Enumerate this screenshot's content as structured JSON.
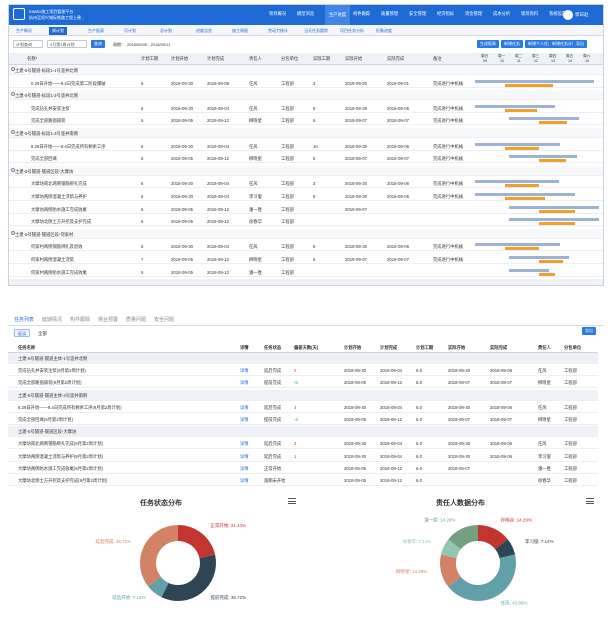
{
  "app": {
    "title_line1": "BIM5D施工项目管理平台",
    "title_line2": "杭州至绍兴城际铁路工程土建...",
    "nav": [
      "项目概况",
      "模型浏览",
      "生产进度",
      "构件跟踪",
      "质量管理",
      "安全管理",
      "经济指标",
      "资金管理",
      "成本分析",
      "现场资料",
      "系统设置"
    ],
    "active_nav": "生产进度",
    "user": "郭日赵"
  },
  "subtabs": [
    "生产概况",
    "周计划",
    "生产报表",
    "月计划",
    "总计划",
    "进度总览",
    "施工周报",
    "劳动力统计",
    "当天任务跟踪",
    "项目任务分析",
    "形象进度"
  ],
  "active_subtab": "周计划",
  "filter": {
    "plan_select": "计划查询",
    "week_select": "9月第2周计划",
    "query_button": "查询",
    "period_label": "周期：",
    "period_value": "2018/09/09 - 2018/09/11"
  },
  "actions": [
    "生成报表",
    "新增任务",
    "新增个人任务",
    "新增任务计划",
    "导出"
  ],
  "grid": {
    "columns": [
      "名称*",
      "计划工期",
      "计划开始",
      "计划完成",
      "责任人",
      "分包单位",
      "实际工期",
      "实际开始",
      "实际完成",
      "备注"
    ],
    "day_headers": [
      "周日",
      "周一",
      "周二",
      "周三",
      "周四",
      "周五",
      "周六"
    ],
    "day_dates": [
      "09",
      "10",
      "11",
      "12",
      "13",
      "14",
      "15"
    ],
    "rows": [
      {
        "type": "grp",
        "name": "土建-5号隧道-标段1-1号竖井北侧",
        "cols": [
          "",
          "",
          "",
          "",
          "",
          "",
          "",
          "",
          "",
          ""
        ]
      },
      {
        "type": "row",
        "name": "0.29日开始——9.4日完成第二阶段爆破",
        "cols": [
          "6",
          "2018-09-30",
          "2018-09-09",
          "任风",
          "工程部",
          "3",
          "2018-09-30",
          "2018-09-01",
          "完成进行中机械",
          ""
        ]
      },
      {
        "type": "grp",
        "name": "土建-5号隧道-标段1-2号竖井北侧",
        "cols": [
          "",
          "",
          "",
          "",
          "",
          "",
          "",
          "",
          "",
          ""
        ]
      },
      {
        "type": "row",
        "name": "完成钻孔并安装注浆",
        "cols": [
          "6",
          "2018-09-30",
          "2018-09-04",
          "任风",
          "工程部",
          "9",
          "2018-09-29",
          "2018-09-06",
          "完成进行中机械",
          ""
        ]
      },
      {
        "type": "row",
        "name": "完成全部路面铺装",
        "cols": [
          "6",
          "2018-09-05",
          "2018-09-12",
          "柳晓星",
          "工程部",
          "6",
          "2018-09-07",
          "2018-09-07",
          "完成进行中机械",
          ""
        ]
      },
      {
        "type": "grp",
        "name": "土建-5号隧道-标段1-3号竖井南侧",
        "cols": [
          "",
          "",
          "",
          "",
          "",
          "",
          "",
          "",
          "",
          ""
        ]
      },
      {
        "type": "row",
        "name": "8.29日开始——9.4日完成所有剩余工序",
        "cols": [
          "6",
          "2018-09-30",
          "2018-09-04",
          "任风",
          "工程部",
          "10",
          "2018-09-30",
          "2018-09-06",
          "完成进行中机械",
          ""
        ]
      },
      {
        "type": "row",
        "name": "完成全部回填",
        "cols": [
          "6",
          "2018-09-05",
          "2018-09-12",
          "柳晓星",
          "工程部",
          "5",
          "2018-09-07",
          "2018-09-07",
          "完成进行中机械",
          ""
        ]
      },
      {
        "type": "grp",
        "name": "土建-5号隧道-隧道区段-大摩坊",
        "cols": [
          "",
          "",
          "",
          "",
          "",
          "",
          "",
          "",
          "",
          ""
        ]
      },
      {
        "type": "row",
        "name": "大摩坊南北两侧钢筋绑扎完成",
        "cols": [
          "6",
          "2018-09-30",
          "2018-09-04",
          "任风",
          "工程部",
          "3",
          "2018-09-30",
          "2018-09-06",
          "完成进行中机械",
          ""
        ]
      },
      {
        "type": "row",
        "name": "大摩坊两侧混凝土浇筑与养护",
        "cols": [
          "6",
          "2018-09-30",
          "2018-09-04",
          "李习俊",
          "工程部",
          "9",
          "2018-09-30",
          "2018-09-06",
          "完成进行中机械",
          ""
        ]
      },
      {
        "type": "row",
        "name": "大摩坊两侧防水施工完成收尾",
        "cols": [
          "6",
          "2018-09-05",
          "2018-09-12",
          "潘一胜",
          "工程部",
          "",
          "2018-09-07",
          "",
          "",
          ""
        ]
      },
      {
        "type": "row",
        "name": "大摩坊北侧土方开挖及支护完成",
        "cols": [
          "6",
          "2018-09-05",
          "2018-09-12",
          "徐春华",
          "工程部",
          "",
          "",
          "",
          "",
          ""
        ]
      },
      {
        "type": "grp",
        "name": "土建-5号隧道-隧道区段-何家村",
        "cols": [
          "",
          "",
          "",
          "",
          "",
          "",
          "",
          "",
          "",
          ""
        ]
      },
      {
        "type": "row",
        "name": "何家村两侧钢筋绑扎及验收",
        "cols": [
          "6",
          "2018-09-30",
          "2018-09-04",
          "任风",
          "工程部",
          "9",
          "2018-09-30",
          "2018-09-06",
          "完成进行中机械",
          ""
        ]
      },
      {
        "type": "row",
        "name": "何家村两侧混凝土浇筑",
        "cols": [
          "7",
          "2018-09-05",
          "2018-09-12",
          "柳晓星",
          "工程部",
          "5",
          "2018-09-07",
          "2018-09-07",
          "完成进行中机械",
          ""
        ]
      },
      {
        "type": "row",
        "name": "何家村两侧防水施工完成收尾",
        "cols": [
          "6",
          "2018-09-05",
          "2018-09-12",
          "潘一胜",
          "工程部",
          "",
          "",
          "",
          "",
          ""
        ]
      }
    ]
  },
  "tabs2": [
    "任务列表",
    "延期情况",
    "构件跟踪",
    "塔台预警",
    "质量问题",
    "安全问题"
  ],
  "active_tab2": "任务列表",
  "filter2": {
    "label": "延误",
    "value": "全部",
    "export": "导出"
  },
  "table2": {
    "columns": [
      "任务名称",
      "详情",
      "任务状态",
      "偏差天数(天)",
      "计划开始",
      "计划完成",
      "计划工期",
      "实际开始",
      "实际完成",
      "责任人",
      "分包单位"
    ],
    "rows": [
      {
        "type": "grp",
        "name": "土建-5号隧道-隧道主体-1号竖井北侧",
        "cols": [
          "",
          "",
          "",
          "",
          "",
          "",
          "",
          "",
          "",
          ""
        ]
      },
      {
        "type": "row",
        "name": "完成钻孔并安装注浆(9月第2周计划)",
        "cols": [
          "详情",
          "延后完成",
          "2",
          "2018-09-30",
          "2018-09-04",
          "6.0",
          "2018-09-29",
          "2018-09-06",
          "任风",
          "工程部"
        ],
        "dev": "red"
      },
      {
        "type": "row",
        "name": "完成全部路面铺装(9月第2周计划)",
        "cols": [
          "详情",
          "提前完成",
          "-5",
          "2018-09-05",
          "2018-09-12",
          "6.0",
          "2018-09-07",
          "2018-09-07",
          "柳晓星",
          "工程部"
        ],
        "dev": "grn"
      },
      {
        "type": "grp",
        "name": "土建-5号隧道-隧道主体-3号竖井南侧",
        "cols": [
          "",
          "",
          "",
          "",
          "",
          "",
          "",
          "",
          "",
          ""
        ]
      },
      {
        "type": "row",
        "name": "8.29日开始——9.4日完成所有剩余工序(9月第2周计划)",
        "cols": [
          "详情",
          "延后完成",
          "4",
          "2018-09-30",
          "2018-09-04",
          "6.0",
          "2018-09-30",
          "2018-09-06",
          "任风",
          "工程部"
        ],
        "dev": "red"
      },
      {
        "type": "row",
        "name": "完成全部回填(9月第2周计划)",
        "cols": [
          "详情",
          "提前完成",
          "-3",
          "2018-09-05",
          "2018-09-12",
          "6.0",
          "2018-09-07",
          "2018-09-07",
          "柳晓星",
          "工程部"
        ],
        "dev": "grn"
      },
      {
        "type": "grp",
        "name": "土建-5号隧道-隧道区段-大摩坊",
        "cols": [
          "",
          "",
          "",
          "",
          "",
          "",
          "",
          "",
          "",
          ""
        ]
      },
      {
        "type": "row",
        "name": "大摩坊南北两侧钢筋绑扎完成(9月第2周计划)",
        "cols": [
          "详情",
          "延后完成",
          "3",
          "2018-09-30",
          "2018-09-04",
          "6.0",
          "2018-09-30",
          "2018-09-06",
          "任风",
          "工程部"
        ],
        "dev": "red"
      },
      {
        "type": "row",
        "name": "大摩坊两侧混凝土浇筑与养护(9月第2周计划)",
        "cols": [
          "详情",
          "延后完成",
          "1",
          "2018-09-30",
          "2018-09-04",
          "6.0",
          "2018-09-30",
          "2018-09-06",
          "李习俊",
          "工程部"
        ],
        "dev": "red"
      },
      {
        "type": "row",
        "name": "大摩坊两侧防水施工完成收尾(9月第2周计划)",
        "cols": [
          "详情",
          "正常开始",
          "",
          "2018-09-05",
          "2018-09-12",
          "6.0",
          "2018-09-07",
          "",
          "潘一胜",
          "工程部"
        ],
        "dev": ""
      },
      {
        "type": "row",
        "name": "大摩坊北侧土方开挖及支护完成(9月第2周计划)",
        "cols": [
          "详情",
          "逾期未开始",
          "",
          "2018-09-05",
          "2018-09-12",
          "6.0",
          "",
          "",
          "徐春华",
          "工程部"
        ],
        "dev": ""
      }
    ]
  },
  "chart_data": [
    {
      "type": "pie",
      "title": "任务状态分布",
      "donut": true,
      "slices": [
        {
          "label": "正常开始: 21.43%",
          "value": 21.43,
          "color": "#c23531"
        },
        {
          "label": "提前完成: 35.72%",
          "value": 35.72,
          "color": "#2f4554"
        },
        {
          "label": "延后开始: 7.14%",
          "value": 7.14,
          "color": "#61a0a8"
        },
        {
          "label": "延后完成: 35.71%",
          "value": 35.71,
          "color": "#d48265"
        }
      ]
    },
    {
      "type": "pie",
      "title": "责任人数据分布",
      "donut": true,
      "slices": [
        {
          "label": "孙晓谷: 14.29%",
          "value": 14.29,
          "color": "#c23531"
        },
        {
          "label": "李习俊: 7.14%",
          "value": 7.14,
          "color": "#2f4554"
        },
        {
          "label": "任风: 42.86%",
          "value": 42.86,
          "color": "#61a0a8"
        },
        {
          "label": "柳晓星: 14.29%",
          "value": 14.29,
          "color": "#d48265"
        },
        {
          "label": "徐春华: 7.14%",
          "value": 7.14,
          "color": "#91c7ae"
        },
        {
          "label": "潘一胜: 14.29%",
          "value": 14.29,
          "color": "#749f83"
        }
      ]
    }
  ]
}
